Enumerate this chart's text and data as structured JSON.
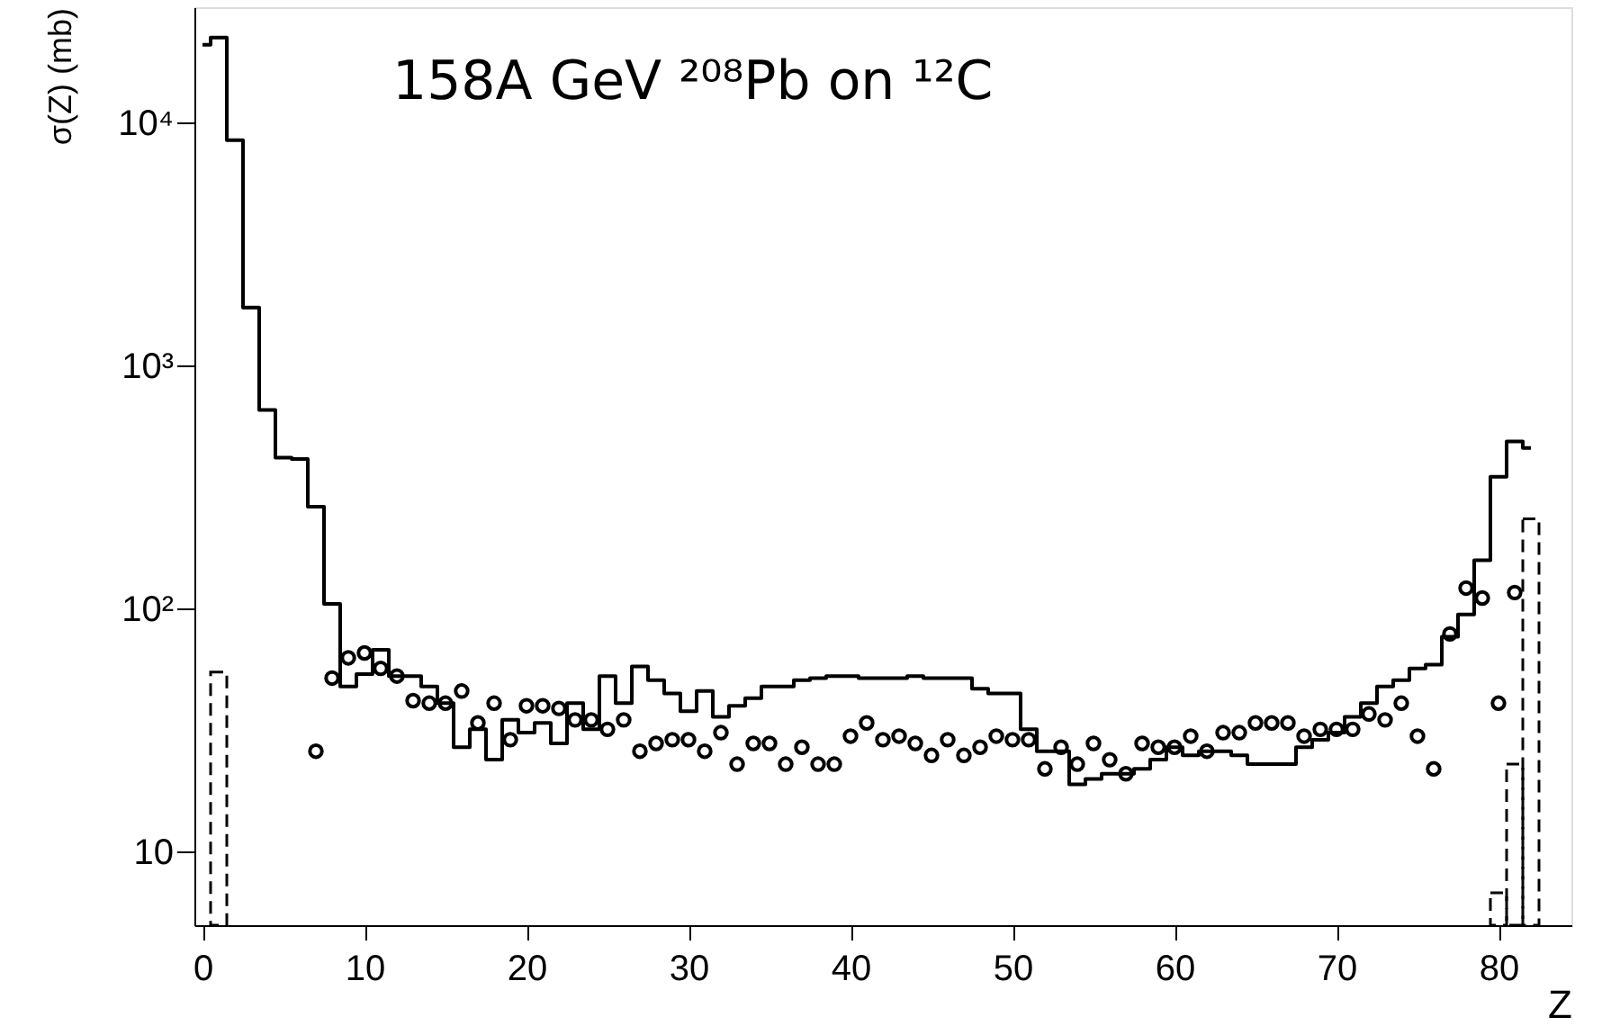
{
  "chart_data": {
    "type": "step",
    "xlabel": "Z",
    "ylabel": "σ(Z) (mb)",
    "annotations": [
      "158A GeV ²⁰⁸Pb on ¹²C"
    ],
    "xlim": [
      -0.5,
      84.5
    ],
    "xticks": [
      0,
      10,
      20,
      30,
      40,
      50,
      60,
      70,
      80
    ],
    "ylim": [
      5,
      30000
    ],
    "log": true,
    "yticks": [
      {
        "value": 10,
        "label": "10"
      },
      {
        "value": 100,
        "label": "10²"
      },
      {
        "value": 1000,
        "label": "10³"
      },
      {
        "value": 10000,
        "label": "10⁴"
      }
    ],
    "grid": false,
    "series": [
      {
        "color": "#000000",
        "line_style": "solid",
        "x": [
          0,
          1,
          2,
          3,
          4,
          5,
          6,
          7,
          8,
          9,
          10,
          11,
          12,
          13,
          14,
          15,
          16,
          17,
          18,
          19,
          20,
          21,
          22,
          23,
          24,
          25,
          26,
          27,
          28,
          29,
          30,
          31,
          32,
          33,
          34,
          35,
          36,
          37,
          38,
          39,
          40,
          41,
          42,
          43,
          44,
          45,
          46,
          47,
          48,
          49,
          50,
          51,
          52,
          53,
          54,
          55,
          56,
          57,
          58,
          59,
          60,
          61,
          62,
          63,
          64,
          65,
          66,
          67,
          68,
          69,
          70,
          71,
          72,
          73,
          74,
          75,
          76,
          77,
          78,
          79,
          80,
          81,
          82
        ],
        "values": [
          21000,
          22500,
          8500,
          1740,
          660,
          420,
          415,
          264,
          105,
          48,
          54,
          68,
          53,
          53,
          48,
          41,
          27,
          32,
          24,
          35,
          31,
          34,
          28,
          41,
          32,
          53,
          41,
          58,
          51,
          45,
          38,
          46,
          36,
          40,
          43,
          48,
          48,
          51,
          52,
          53,
          53,
          52,
          52,
          52,
          53,
          52,
          52,
          52,
          47,
          45,
          45,
          32,
          26,
          26,
          19,
          20,
          21,
          21,
          22,
          24,
          27,
          25,
          26,
          26,
          25,
          23,
          23,
          23,
          27,
          29,
          31,
          36,
          41,
          48,
          51,
          57,
          59,
          77,
          95,
          159,
          350,
          490,
          460
        ]
      },
      {
        "type": "bar",
        "color": "#000000",
        "line_style": "dashed",
        "x": [
          1,
          80,
          81,
          82
        ],
        "values": [
          55,
          6.8,
          23,
          235
        ]
      },
      {
        "type": "scatter",
        "color": "#000000",
        "marker": "circle",
        "x": [
          7,
          8,
          9,
          10,
          11,
          12,
          13,
          14,
          15,
          16,
          17,
          18,
          19,
          20,
          21,
          22,
          23,
          24,
          25,
          26,
          27,
          28,
          29,
          30,
          31,
          32,
          33,
          34,
          35,
          36,
          37,
          38,
          39,
          40,
          41,
          42,
          43,
          44,
          45,
          46,
          47,
          48,
          49,
          50,
          51,
          52,
          53,
          54,
          55,
          56,
          57,
          58,
          59,
          60,
          61,
          62,
          63,
          64,
          65,
          66,
          67,
          68,
          69,
          70,
          71,
          72,
          73,
          74,
          75,
          76,
          77,
          78,
          79,
          80,
          81
        ],
        "values": [
          26,
          52,
          63,
          66,
          57,
          53,
          42,
          41,
          41,
          46,
          34,
          41,
          29,
          40,
          40,
          39,
          35,
          35,
          32,
          35,
          26,
          28,
          29,
          29,
          26,
          31,
          23,
          28,
          28,
          23,
          27,
          23,
          23,
          30,
          34,
          29,
          30,
          28,
          25,
          29,
          25,
          27,
          30,
          29,
          29,
          22,
          27,
          23,
          28,
          24,
          21,
          28,
          27,
          27,
          30,
          26,
          31,
          31,
          34,
          34,
          34,
          30,
          32,
          32,
          32,
          37,
          35,
          41,
          30,
          22,
          79,
          122,
          111,
          41,
          117
        ]
      }
    ]
  }
}
